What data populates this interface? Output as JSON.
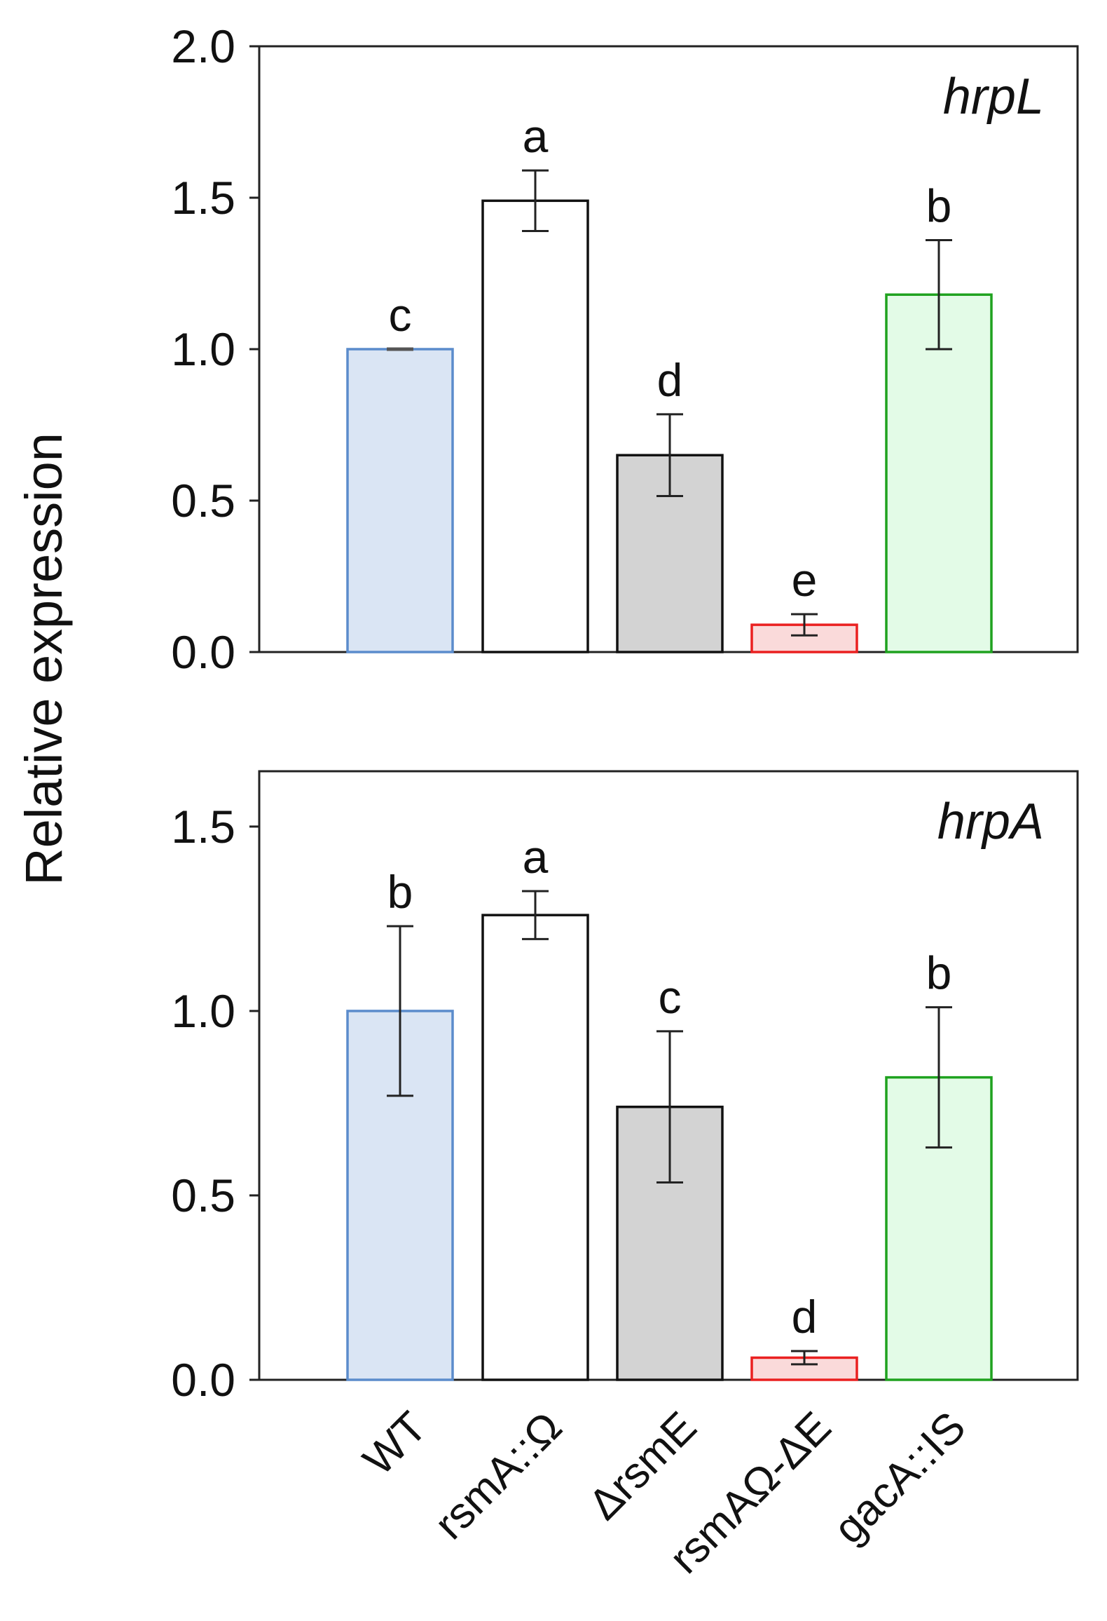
{
  "chart_data": [
    {
      "type": "bar",
      "title": "hrpL",
      "xlabel": "",
      "ylabel": "Relative expression",
      "ylim": [
        0,
        2.0
      ],
      "yticks": [
        "0.0",
        "0.5",
        "1.0",
        "1.5",
        "2.0"
      ],
      "categories": [
        "WT",
        "rsmA::Ω",
        "ΔrsmE",
        "rsmAΩ-ΔE",
        "gacA::IS"
      ],
      "values": [
        1.0,
        1.49,
        0.65,
        0.09,
        1.18
      ],
      "errors": [
        0.0,
        0.1,
        0.135,
        0.035,
        0.18
      ],
      "significance": [
        "c",
        "a",
        "d",
        "e",
        "b"
      ],
      "fill_colors": [
        "#dae5f4",
        "#ffffff",
        "#d3d3d3",
        "#fadada",
        "#e3fbe7"
      ],
      "edge_colors": [
        "#5b8ccc",
        "#111111",
        "#111111",
        "#ea2020",
        "#1fa21f"
      ]
    },
    {
      "type": "bar",
      "title": "hrpA",
      "xlabel": "",
      "ylabel": "Relative expression",
      "ylim": [
        0,
        1.65
      ],
      "yticks": [
        "0.0",
        "0.5",
        "1.0",
        "1.5"
      ],
      "categories": [
        "WT",
        "rsmA::Ω",
        "ΔrsmE",
        "rsmAΩ-ΔE",
        "gacA::IS"
      ],
      "values": [
        1.0,
        1.26,
        0.74,
        0.06,
        0.82
      ],
      "errors": [
        0.23,
        0.065,
        0.205,
        0.018,
        0.19
      ],
      "significance": [
        "b",
        "a",
        "c",
        "d",
        "b"
      ],
      "fill_colors": [
        "#dae5f4",
        "#ffffff",
        "#d3d3d3",
        "#fadada",
        "#e3fbe7"
      ],
      "edge_colors": [
        "#5b8ccc",
        "#111111",
        "#111111",
        "#ea2020",
        "#1fa21f"
      ]
    }
  ]
}
